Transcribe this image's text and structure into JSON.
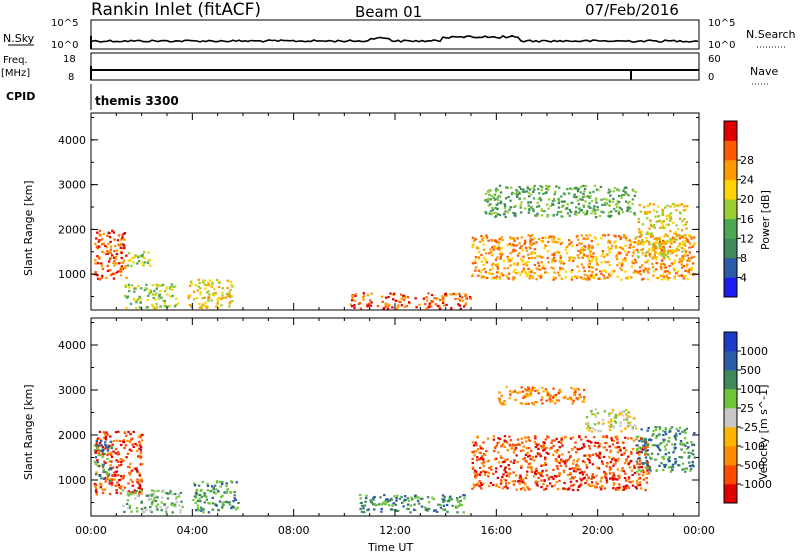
{
  "header": {
    "title": "Rankin Inlet (fitACF)",
    "beam": "Beam 01",
    "date": "07/Feb/2016"
  },
  "colors": {
    "power_scale": [
      "#1c1cf0",
      "#2a5aa8",
      "#3f8a5a",
      "#4aa856",
      "#9acd32",
      "#ffd400",
      "#ff9a00",
      "#ff5a00",
      "#e00000"
    ],
    "velocity_scale": [
      "#e00000",
      "#ff4a00",
      "#ff8c00",
      "#ffb400",
      "#c8c8c8",
      "#6ec53a",
      "#3f8a5a",
      "#2a5aa8",
      "#1c3cc8"
    ]
  },
  "top_panels": {
    "nsky": {
      "label": "N.Sky",
      "ticks_left": [
        "10^5",
        "10^0"
      ],
      "ticks_right": [
        "10^5",
        "10^0"
      ],
      "right_label": "N.Search"
    },
    "freq": {
      "label": "Freq.",
      "unit": "[MHz]",
      "ticks_left": [
        "18",
        "8"
      ],
      "ticks_right": [
        "60",
        "0"
      ],
      "right_label": "Nave"
    },
    "cpid": {
      "label": "CPID",
      "program": "themis 3300"
    }
  },
  "chart_data": [
    {
      "type": "heatmap",
      "quantity": "power",
      "ylabel": "Slant Range [km]",
      "yticks": [
        "1000",
        "2000",
        "3000",
        "4000"
      ],
      "ylim": [
        200,
        4600
      ],
      "xlim": [
        0,
        24
      ],
      "colorbar_label": "Power [dB]",
      "colorbar_ticks": [
        "4",
        "8",
        "12",
        "16",
        "20",
        "24",
        "28"
      ],
      "regions": [
        {
          "t0": 0.1,
          "t1": 1.4,
          "r0": 900,
          "r1": 2000,
          "level": 7
        },
        {
          "t0": 1.4,
          "t1": 2.3,
          "r0": 1200,
          "r1": 1600,
          "level": 4
        },
        {
          "t0": 1.3,
          "t1": 3.4,
          "r0": 250,
          "r1": 800,
          "level": 4
        },
        {
          "t0": 3.8,
          "t1": 5.6,
          "r0": 250,
          "r1": 900,
          "level": 5
        },
        {
          "t0": 10.2,
          "t1": 15.0,
          "r0": 250,
          "r1": 600,
          "level": 7
        },
        {
          "t0": 15.0,
          "t1": 23.8,
          "r0": 900,
          "r1": 1900,
          "level": 6
        },
        {
          "t0": 15.5,
          "t1": 21.5,
          "r0": 2300,
          "r1": 3000,
          "level": 3
        },
        {
          "t0": 21.5,
          "t1": 23.5,
          "r0": 1400,
          "r1": 2600,
          "level": 5
        }
      ]
    },
    {
      "type": "heatmap",
      "quantity": "velocity",
      "ylabel": "Slant Range [km]",
      "yticks": [
        "1000",
        "2000",
        "3000",
        "4000"
      ],
      "ylim": [
        200,
        4600
      ],
      "xlim": [
        0,
        24
      ],
      "xticks": [
        "00:00",
        "04:00",
        "08:00",
        "12:00",
        "16:00",
        "20:00",
        "00:00"
      ],
      "xlabel": "Time UT",
      "colorbar_label": "Velocity [m s^-1]",
      "colorbar_ticks": [
        "-1000",
        "-500",
        "-100",
        "-25",
        "25",
        "100",
        "500",
        "1000"
      ],
      "regions": [
        {
          "t0": 0.1,
          "t1": 2.0,
          "r0": 700,
          "r1": 2100,
          "level": 1
        },
        {
          "t0": 0.1,
          "t1": 0.8,
          "r0": 1000,
          "r1": 1900,
          "level": 6
        },
        {
          "t0": 1.2,
          "t1": 3.6,
          "r0": 300,
          "r1": 800,
          "level": 5
        },
        {
          "t0": 4.0,
          "t1": 5.8,
          "r0": 300,
          "r1": 1000,
          "level": 6
        },
        {
          "t0": 10.5,
          "t1": 14.8,
          "r0": 300,
          "r1": 700,
          "level": 6
        },
        {
          "t0": 15.0,
          "t1": 22.0,
          "r0": 800,
          "r1": 2000,
          "level": 1
        },
        {
          "t0": 16.0,
          "t1": 19.5,
          "r0": 2700,
          "r1": 3100,
          "level": 2
        },
        {
          "t0": 19.5,
          "t1": 21.5,
          "r0": 2100,
          "r1": 2600,
          "level": 4
        },
        {
          "t0": 21.5,
          "t1": 23.8,
          "r0": 1200,
          "r1": 2200,
          "level": 6
        }
      ]
    }
  ]
}
